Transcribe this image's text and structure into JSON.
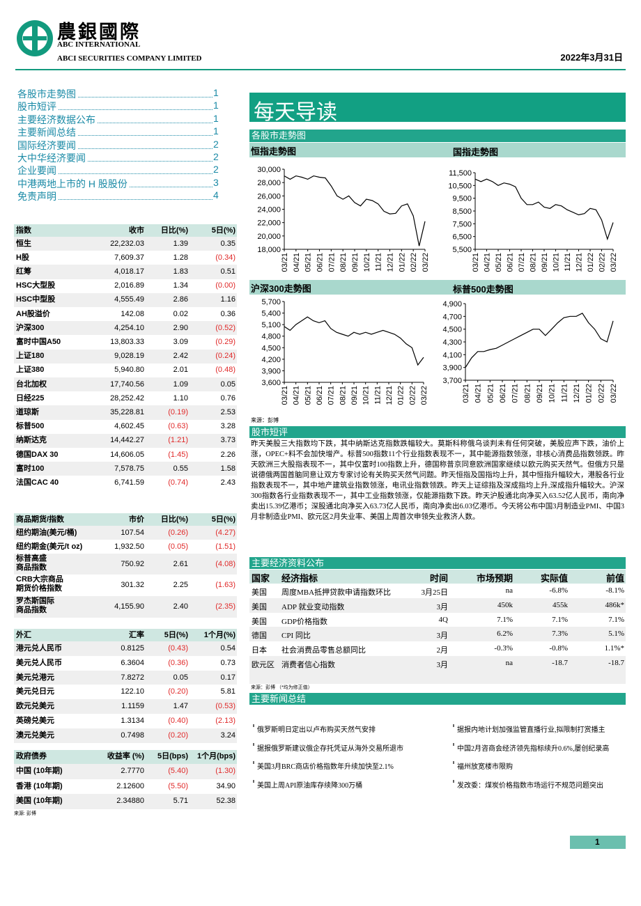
{
  "header": {
    "logo_cn": "農銀國際",
    "logo_en1": "ABC INTERNATIONAL",
    "logo_en2": "ABCI SECURITIES COMPANY LIMITED",
    "date": "2022年3月31日"
  },
  "toc": [
    {
      "label": "各股市走勢图",
      "page": "1"
    },
    {
      "label": "股市短评",
      "page": "1"
    },
    {
      "label": "主要经济数据公布",
      "page": "1"
    },
    {
      "label": "主要新闻总结",
      "page": "1"
    },
    {
      "label": "国际经济要闻",
      "page": "2"
    },
    {
      "label": "大中华经济要闻",
      "page": "2"
    },
    {
      "label": "企业要闻",
      "page": "2"
    },
    {
      "label": "中港两地上市的 H 股股份",
      "page": "3"
    },
    {
      "label": "免责声明",
      "page": "4"
    }
  ],
  "title": "每天导读",
  "index_table": {
    "headers": [
      "指数",
      "收市",
      "日比(%)",
      "5日(%)"
    ],
    "rows": [
      [
        "恒生",
        "22,232.03",
        "1.39",
        "0.35"
      ],
      [
        "H股",
        "7,609.37",
        "1.28",
        "(0.34)"
      ],
      [
        "红筹",
        "4,018.17",
        "1.83",
        "0.51"
      ],
      [
        "HSC大型股",
        "2,016.89",
        "1.34",
        "(0.00)"
      ],
      [
        "HSC中型股",
        "4,555.49",
        "2.86",
        "1.16"
      ],
      [
        "AH股溢价",
        "142.08",
        "0.02",
        "0.36"
      ],
      [
        "沪深300",
        "4,254.10",
        "2.90",
        "(0.52)"
      ],
      [
        "富时中国A50",
        "13,803.33",
        "3.09",
        "(0.29)"
      ],
      [
        "上证180",
        "9,028.19",
        "2.42",
        "(0.24)"
      ],
      [
        "上证380",
        "5,940.80",
        "2.01",
        "(0.48)"
      ],
      [
        "台北加权",
        "17,740.56",
        "1.09",
        "0.05"
      ],
      [
        "日经225",
        "28,252.42",
        "1.10",
        "0.76"
      ],
      [
        "道琼斯",
        "35,228.81",
        "(0.19)",
        "2.53"
      ],
      [
        "标普500",
        "4,602.45",
        "(0.63)",
        "3.28"
      ],
      [
        "纳斯达克",
        "14,442.27",
        "(1.21)",
        "3.73"
      ],
      [
        "德国DAX 30",
        "14,606.05",
        "(1.45)",
        "2.26"
      ],
      [
        "富时100",
        "7,578.75",
        "0.55",
        "1.58"
      ],
      [
        "法国CAC 40",
        "6,741.59",
        "(0.74)",
        "2.43"
      ]
    ]
  },
  "commodity_table": {
    "headers": [
      "商品期货/指数",
      "市价",
      "日比(%)",
      "5日(%)"
    ],
    "rows": [
      [
        "纽约期油(美元/桶)",
        "107.54",
        "(0.26)",
        "(4.27)"
      ],
      [
        "纽约期金(美元/t oz)",
        "1,932.50",
        "(0.05)",
        "(1.51)"
      ],
      [
        "标普高盛\n商品指数",
        "750.92",
        "2.61",
        "(4.08)"
      ],
      [
        "CRB大宗商品\n期货价格指数",
        "301.32",
        "2.25",
        "(1.63)"
      ],
      [
        "罗杰斯国际\n商品指数",
        "4,155.90",
        "2.40",
        "(2.35)"
      ]
    ]
  },
  "fx_table": {
    "headers": [
      "外汇",
      "汇率",
      "5日(%)",
      "1个月(%)"
    ],
    "rows": [
      [
        "港元兑人民币",
        "0.8125",
        "(0.43)",
        "0.54"
      ],
      [
        "美元兑人民币",
        "6.3604",
        "(0.36)",
        "0.73"
      ],
      [
        "美元兑港元",
        "7.8272",
        "0.05",
        "0.17"
      ],
      [
        "美元兑日元",
        "122.10",
        "(0.20)",
        "5.81"
      ],
      [
        "欧元兑美元",
        "1.1159",
        "1.47",
        "(0.53)"
      ],
      [
        "英磅兑美元",
        "1.3134",
        "(0.40)",
        "(2.13)"
      ],
      [
        "澳元兑美元",
        "0.7498",
        "(0.20)",
        "3.24"
      ]
    ]
  },
  "bond_table": {
    "headers": [
      "政府债券",
      "收益率 (%)",
      "5日(bps)",
      "1个月(bps)"
    ],
    "rows": [
      [
        "中国 (10年期)",
        "2.7770",
        "(5.40)",
        "(1.30)"
      ],
      [
        "香港 (10年期)",
        "2.12600",
        "(5.50)",
        "34.90"
      ],
      [
        "美国 (10年期)",
        "2.34880",
        "5.71",
        "52.38"
      ]
    ]
  },
  "bond_source": "来源: 彭博",
  "charts_section": "各股市走勢图",
  "chart_data": [
    {
      "type": "line",
      "title": "恒指走勢图",
      "color": "#000000",
      "categories": [
        "03/21",
        null,
        "04/21",
        null,
        "05/21",
        null,
        "06/21",
        null,
        "07/21",
        null,
        "08/21",
        null,
        "09/21",
        null,
        "10/21",
        null,
        "11/21",
        null,
        "12/21",
        null,
        "01/22",
        null,
        "02/22",
        null,
        "03/22"
      ],
      "values": [
        29000,
        28500,
        29000,
        28800,
        28500,
        29000,
        28800,
        28700,
        27500,
        26000,
        25500,
        26000,
        25000,
        24500,
        25500,
        25300,
        24800,
        23700,
        23300,
        23400,
        24500,
        24800,
        23000,
        18500,
        22200
      ],
      "ylim": [
        18000,
        30000
      ],
      "yticks": [
        {
          "value": 18000,
          "label": "18,000"
        },
        {
          "value": 20000,
          "label": "20,000"
        },
        {
          "value": 22000,
          "label": "22,000"
        },
        {
          "value": 24000,
          "label": "24,000"
        },
        {
          "value": 26000,
          "label": "26,000"
        },
        {
          "value": 28000,
          "label": "28,000"
        },
        {
          "value": 30000,
          "label": "30,000"
        }
      ]
    },
    {
      "type": "line",
      "title": "国指走勢图",
      "color": "#000000",
      "categories": [
        "03/21",
        null,
        "04/21",
        null,
        "05/21",
        null,
        "06/21",
        null,
        "07/21",
        null,
        "08/21",
        null,
        "09/21",
        null,
        "10/21",
        null,
        "11/21",
        null,
        "12/21",
        null,
        "01/22",
        null,
        "02/22",
        null,
        "03/22"
      ],
      "values": [
        11000,
        10800,
        11000,
        10800,
        10500,
        10700,
        10600,
        10400,
        9500,
        9000,
        9000,
        9200,
        8800,
        8700,
        9000,
        8900,
        8600,
        8400,
        8200,
        8300,
        8700,
        8600,
        7800,
        6300,
        7600
      ],
      "ylim": [
        5500,
        11500
      ],
      "yticks": [
        {
          "value": 5500,
          "label": "5,500"
        },
        {
          "value": 6500,
          "label": "6,500"
        },
        {
          "value": 7500,
          "label": "7,500"
        },
        {
          "value": 8500,
          "label": "8,500"
        },
        {
          "value": 9500,
          "label": "9,500"
        },
        {
          "value": 10500,
          "label": "10,500"
        },
        {
          "value": 11500,
          "label": "11,500"
        }
      ]
    },
    {
      "type": "line",
      "title": "沪深300走勢图",
      "color": "#000000",
      "categories": [
        "03/21",
        null,
        "04/21",
        null,
        "05/21",
        null,
        "06/21",
        null,
        "07/21",
        null,
        "08/21",
        null,
        "09/21",
        null,
        "10/21",
        null,
        "11/21",
        null,
        "12/21",
        null,
        "01/22",
        null,
        "02/22",
        null,
        "03/22"
      ],
      "values": [
        5050,
        4950,
        5100,
        5200,
        5300,
        5200,
        5150,
        5200,
        5000,
        4900,
        4850,
        4800,
        4900,
        4850,
        4900,
        4850,
        4900,
        4950,
        4900,
        4850,
        4750,
        4600,
        4500,
        4050,
        4250
      ],
      "ylim": [
        3600,
        5700
      ],
      "yticks": [
        {
          "value": 3600,
          "label": "3,600"
        },
        {
          "value": 3900,
          "label": "3,900"
        },
        {
          "value": 4200,
          "label": "4,200"
        },
        {
          "value": 4500,
          "label": "4,500"
        },
        {
          "value": 4800,
          "label": "4,800"
        },
        {
          "value": 5100,
          "label": "5,100"
        },
        {
          "value": 5400,
          "label": "5,400"
        },
        {
          "value": 5700,
          "label": "5,700"
        }
      ]
    },
    {
      "type": "line",
      "title": "标普500走勢图",
      "color": "#000000",
      "categories": [
        "03/21",
        null,
        "04/21",
        null,
        "05/21",
        null,
        "06/21",
        null,
        "07/21",
        null,
        "08/21",
        null,
        "09/21",
        null,
        "10/21",
        null,
        "11/21",
        null,
        "12/21",
        null,
        "01/22",
        null,
        "02/22",
        null,
        "03/22"
      ],
      "values": [
        3900,
        4050,
        4150,
        4150,
        4180,
        4200,
        4250,
        4300,
        4350,
        4400,
        4450,
        4500,
        4500,
        4400,
        4500,
        4600,
        4680,
        4700,
        4700,
        4750,
        4600,
        4500,
        4350,
        4300,
        4630
      ],
      "ylim": [
        3700,
        4900
      ],
      "yticks": [
        {
          "value": 3700,
          "label": "3,700"
        },
        {
          "value": 3900,
          "label": "3,900"
        },
        {
          "value": 4100,
          "label": "4,100"
        },
        {
          "value": 4300,
          "label": "4,300"
        },
        {
          "value": 4500,
          "label": "4,500"
        },
        {
          "value": 4700,
          "label": "4,700"
        },
        {
          "value": 4900,
          "label": "4,900"
        }
      ]
    }
  ],
  "charts_source": "来源：彭博",
  "commentary": {
    "title": "股市短评",
    "text": "昨天美股三大指数均下跌，其中纳斯达克指数跌幅较大。莫斯科称俄乌谈判未有任何突破，美股应声下跌，油价上涨，OPEC+料不会加快增产。标普500指数11个行业指数表现不一，其中能源指数领涨，非核心消费品指数领跌。昨天欧洲三大股指表现不一，其中仅富时100指数上升，德国称普京同意欧洲国家继续以欧元购买天然气。但俄方只是说德俄两国首脑同意让双方专家讨论有关购买天然气问题。昨天恒指及国指均上升，其中恒指升幅较大，港股各行业指数表现不一，其中地产建筑业指数领涨，电讯业指数领跌。昨天上证综指及深成指均上升,深成指升幅较大。沪深300指数各行业指数表现不一，其中工业指数领涨，仅能源指数下跌。昨天沪股通北向净买入63.52亿人民币，南向净卖出15.39亿港币；深股通北向净买入63.73亿人民币，南向净卖出6.03亿港币。今天将公布中国3月制造业PMI、中国3月非制造业PMI、欧元区2月失业率、美国上周首次申领失业救济人数。"
  },
  "econ": {
    "title": "主要经济资料公布",
    "headers": [
      "国家",
      "经济指标",
      "时间",
      "市场预期",
      "实际值",
      "前值"
    ],
    "rows": [
      [
        "美国",
        "周度MBA抵押贷款申请指数环比",
        "3月25日",
        "na",
        "-6.8%",
        "-8.1%"
      ],
      [
        "美国",
        "ADP 就业变动指数",
        "3月",
        "450k",
        "455k",
        "486k*"
      ],
      [
        "美国",
        "GDP价格指数",
        "4Q",
        "7.1%",
        "7.1%",
        "7.1%"
      ],
      [
        "德国",
        "CPI 同比",
        "3月",
        "6.2%",
        "7.3%",
        "5.1%"
      ],
      [
        "日本",
        "社会消费品零售总额同比",
        "2月",
        "-0.3%",
        "-0.8%",
        "1.1%*"
      ],
      [
        "欧元区",
        "消费者信心指数",
        "3月",
        "na",
        "-18.7",
        "-18.7"
      ]
    ],
    "source": "来源：彭博 （*均为修正值）"
  },
  "news": {
    "title": "主要新闻总结",
    "left": [
      "俄罗斯明日定出以卢布购买天然气安排",
      "据报俄罗斯建议俄企存托凭证从海外交易所退市",
      "美国3月BRC商店价格指数年升续加快至2.1%",
      "美国上周API原油库存续降300万桶"
    ],
    "right": [
      "据报内地计划加强监管直播行业,拟限制打赏播主",
      "中国2月咨商会经济领先指标续升0.6%,屡创纪录高",
      "福州放宽楼市限购",
      "发改委：煤炭价格指数市场运行不规范问题突出"
    ]
  },
  "page_number": "1"
}
